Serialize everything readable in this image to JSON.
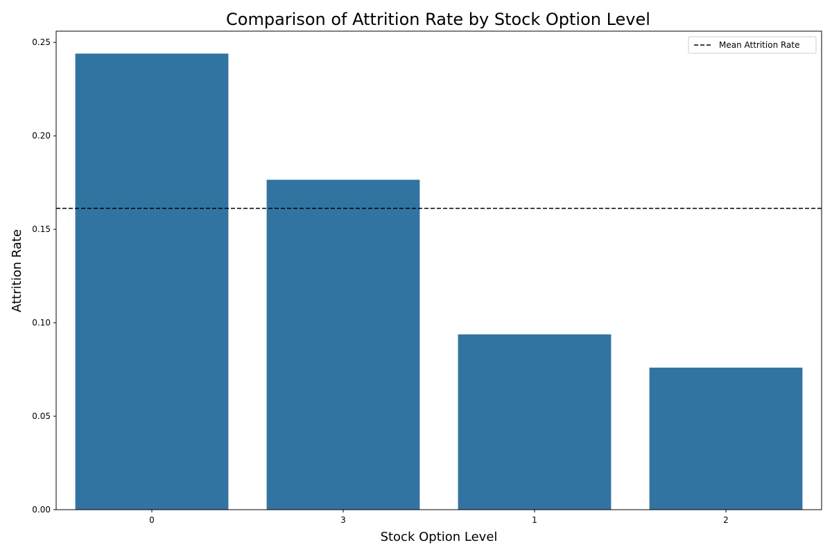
{
  "chart_data": {
    "type": "bar",
    "title": "Comparison of Attrition Rate by Stock Option Level",
    "xlabel": "Stock Option Level",
    "ylabel": "Attrition Rate",
    "categories": [
      "0",
      "3",
      "1",
      "2"
    ],
    "values": [
      0.244,
      0.1765,
      0.0938,
      0.076
    ],
    "ylim": [
      0,
      0.256
    ],
    "yticks": [
      0.0,
      0.05,
      0.1,
      0.15,
      0.2,
      0.25
    ],
    "ytick_labels": [
      "0.00",
      "0.05",
      "0.10",
      "0.15",
      "0.20",
      "0.25"
    ],
    "bar_color": "#3274a1",
    "reference_line": {
      "label": "Mean Attrition Rate",
      "value": 0.1612,
      "style": "dashed",
      "color": "#000000"
    },
    "legend": {
      "placement": "top-right",
      "entries": [
        "Mean Attrition Rate"
      ]
    },
    "grid": false
  }
}
